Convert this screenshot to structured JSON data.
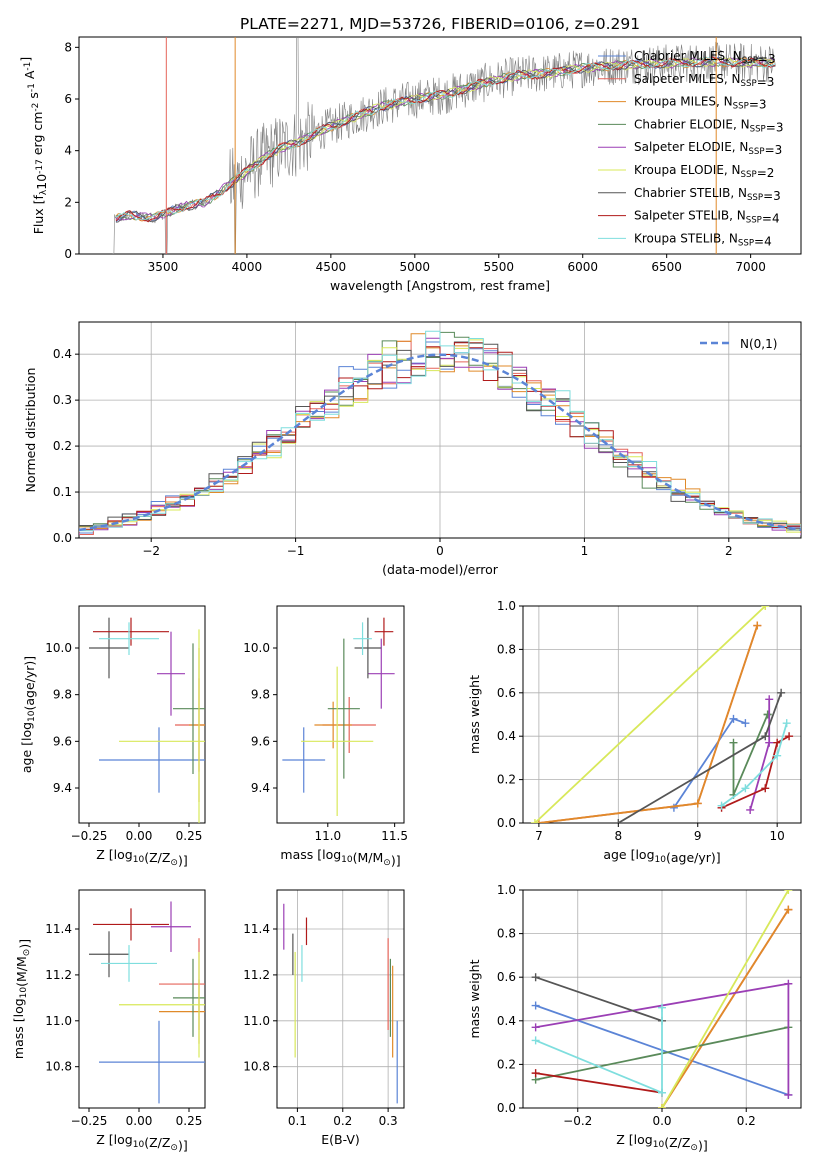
{
  "title": "PLATE=2271, MJD=53726, FIBERID=0106, z=0.291",
  "colors": {
    "chabrier_miles": "#5b84d6",
    "salpeter_miles": "#e5645a",
    "kroupa_miles": "#e08a2a",
    "chabrier_elodie": "#5a8a5a",
    "salpeter_elodie": "#9b3fb5",
    "kroupa_elodie": "#d8e85a",
    "chabrier_stelib": "#555555",
    "salpeter_stelib": "#b01a1a",
    "kroupa_stelib": "#7fdede",
    "data": "#808080",
    "gaussian": "#5b84d6"
  },
  "chart_data": [
    {
      "id": "spectrum",
      "type": "line",
      "xlabel": "wavelength [Angstrom, rest frame]",
      "ylabel": "Flux [f$_\\lambda$10$^{-17}$ erg cm$^{-2}$ s$^{-1}$ A$^{-1}$]",
      "xlim": [
        3000,
        7300
      ],
      "ylim": [
        0,
        8.4
      ],
      "xticks": [
        3500,
        4000,
        4500,
        5000,
        5500,
        6000,
        6500,
        7000
      ],
      "yticks": [
        0,
        2,
        4,
        6,
        8
      ],
      "legend_position": "top-right",
      "legend": [
        {
          "label": "Chabrier MILES, N$_{SSP}$=3",
          "color_key": "chabrier_miles"
        },
        {
          "label": "Salpeter MILES, N$_{SSP}$=3",
          "color_key": "salpeter_miles"
        },
        {
          "label": "Kroupa MILES, N$_{SSP}$=3",
          "color_key": "kroupa_miles"
        },
        {
          "label": "Chabrier ELODIE, N$_{SSP}$=3",
          "color_key": "chabrier_elodie"
        },
        {
          "label": "Salpeter ELODIE, N$_{SSP}$=3",
          "color_key": "salpeter_elodie"
        },
        {
          "label": "Kroupa ELODIE, N$_{SSP}$=2",
          "color_key": "kroupa_elodie"
        },
        {
          "label": "Chabrier STELIB, N$_{SSP}$=3",
          "color_key": "chabrier_stelib"
        },
        {
          "label": "Salpeter STELIB, N$_{SSP}$=4",
          "color_key": "salpeter_stelib"
        },
        {
          "label": "Kroupa STELIB, N$_{SSP}$=4",
          "color_key": "kroupa_stelib"
        }
      ],
      "continuum": {
        "x": [
          3200,
          3300,
          3450,
          3600,
          3750,
          3900,
          4000,
          4100,
          4200,
          4300,
          4450,
          4600,
          4800,
          5000,
          5200,
          5400,
          5600,
          5800,
          6000,
          6200,
          6400,
          6600,
          6800,
          7000,
          7100
        ],
        "y": [
          1.3,
          1.5,
          1.4,
          1.8,
          2.0,
          2.7,
          3.2,
          3.7,
          4.1,
          4.3,
          4.8,
          5.2,
          5.7,
          6.0,
          6.2,
          6.6,
          6.9,
          7.0,
          7.2,
          7.3,
          7.35,
          7.4,
          7.45,
          7.4,
          7.4
        ]
      }
    },
    {
      "id": "residual_hist",
      "type": "histogram",
      "xlabel": "(data-model)/error",
      "ylabel": "Normed distribution",
      "xlim": [
        -2.5,
        2.5
      ],
      "ylim": [
        0,
        0.47
      ],
      "xticks": [
        -2,
        -1,
        0,
        1,
        2
      ],
      "yticks": [
        0.0,
        0.1,
        0.2,
        0.3,
        0.4
      ],
      "grid": true,
      "legend_position": "top-right",
      "reference": {
        "label": "$\\mathcal{N}(0,1)$",
        "mean": 0,
        "sigma": 1
      }
    },
    {
      "id": "age_vs_Z",
      "type": "errorbar",
      "xlabel": "Z [log$_{10}$(Z/Z$_\\odot$)]",
      "ylabel": "age  [log$_{10}$(age/yr)]",
      "xlim": [
        -0.3,
        0.33
      ],
      "ylim": [
        9.25,
        10.18
      ],
      "xticks": [
        -0.25,
        0.0,
        0.25
      ],
      "yticks": [
        9.4,
        9.6,
        9.8,
        10.0
      ],
      "points": [
        {
          "series": "chabrier_miles",
          "x": 0.1,
          "y": 9.52,
          "xerr": 0.3,
          "yerr": 0.14
        },
        {
          "series": "salpeter_miles",
          "x": 0.3,
          "y": 9.67,
          "xerr": 0.12,
          "yerr": 0.2
        },
        {
          "series": "kroupa_miles",
          "x": 0.3,
          "y": 9.67,
          "xerr": 0.05,
          "yerr": 0.33
        },
        {
          "series": "chabrier_elodie",
          "x": 0.27,
          "y": 9.74,
          "xerr": 0.1,
          "yerr": 0.28
        },
        {
          "series": "salpeter_elodie",
          "x": 0.16,
          "y": 9.89,
          "xerr": 0.07,
          "yerr": 0.18
        },
        {
          "series": "kroupa_elodie",
          "x": 0.3,
          "y": 9.6,
          "xerr": 0.4,
          "yerr": 0.48
        },
        {
          "series": "chabrier_stelib",
          "x": -0.15,
          "y": 10.0,
          "xerr": 0.1,
          "yerr": 0.13
        },
        {
          "series": "salpeter_stelib",
          "x": -0.04,
          "y": 10.07,
          "xerr": 0.19,
          "yerr": 0.06
        },
        {
          "series": "kroupa_stelib",
          "x": -0.05,
          "y": 10.04,
          "xerr": 0.15,
          "yerr": 0.07
        }
      ]
    },
    {
      "id": "age_vs_mass",
      "type": "errorbar",
      "xlabel": "mass [log$_{10}$(M/M$_\\odot$)]",
      "ylabel": "",
      "xlim": [
        10.62,
        11.57
      ],
      "ylim": [
        9.25,
        10.18
      ],
      "xticks": [
        11.0,
        11.5
      ],
      "yticks": [
        9.4,
        9.6,
        9.8,
        10.0
      ],
      "points": [
        {
          "series": "chabrier_miles",
          "x": 10.82,
          "y": 9.52,
          "xerr": 0.16,
          "yerr": 0.14
        },
        {
          "series": "salpeter_miles",
          "x": 11.16,
          "y": 9.67,
          "xerr": 0.2,
          "yerr": 0.12
        },
        {
          "series": "kroupa_miles",
          "x": 11.04,
          "y": 9.67,
          "xerr": 0.14,
          "yerr": 0.1
        },
        {
          "series": "chabrier_elodie",
          "x": 11.12,
          "y": 9.74,
          "xerr": 0.12,
          "yerr": 0.3
        },
        {
          "series": "salpeter_elodie",
          "x": 11.4,
          "y": 9.89,
          "xerr": 0.1,
          "yerr": 0.15
        },
        {
          "series": "kroupa_elodie",
          "x": 11.07,
          "y": 9.6,
          "xerr": 0.27,
          "yerr": 0.32
        },
        {
          "series": "chabrier_stelib",
          "x": 11.3,
          "y": 10.0,
          "xerr": 0.1,
          "yerr": 0.13
        },
        {
          "series": "salpeter_stelib",
          "x": 11.42,
          "y": 10.07,
          "xerr": 0.07,
          "yerr": 0.06
        },
        {
          "series": "kroupa_stelib",
          "x": 11.26,
          "y": 10.04,
          "xerr": 0.07,
          "yerr": 0.07
        }
      ]
    },
    {
      "id": "mass_weight_vs_age",
      "type": "line",
      "xlabel": "age  [log$_{10}$(age/yr)]",
      "ylabel": "mass weight",
      "xlim": [
        6.8,
        10.3
      ],
      "ylim": [
        0,
        1.0
      ],
      "xticks": [
        7,
        8,
        9,
        10
      ],
      "yticks": [
        0.0,
        0.2,
        0.4,
        0.6,
        0.8,
        1.0
      ],
      "grid": true,
      "series": [
        {
          "name": "chabrier_miles",
          "x": [
            8.7,
            9.45,
            9.6
          ],
          "y": [
            0.07,
            0.48,
            0.46
          ]
        },
        {
          "name": "salpeter_miles",
          "x": [
            7.0,
            9.0,
            9.75
          ],
          "y": [
            0.0,
            0.09,
            0.91
          ]
        },
        {
          "name": "kroupa_miles",
          "x": [
            7.0,
            9.0,
            9.75
          ],
          "y": [
            0.0,
            0.09,
            0.91
          ]
        },
        {
          "name": "chabrier_elodie",
          "x": [
            9.45,
            9.45,
            9.88,
            9.88
          ],
          "y": [
            0.37,
            0.13,
            0.5,
            0.5
          ]
        },
        {
          "name": "salpeter_elodie",
          "x": [
            9.66,
            9.9,
            9.9
          ],
          "y": [
            0.06,
            0.37,
            0.57
          ]
        },
        {
          "name": "kroupa_elodie",
          "x": [
            6.95,
            9.85
          ],
          "y": [
            0.0,
            1.0
          ]
        },
        {
          "name": "chabrier_stelib",
          "x": [
            8.0,
            9.85,
            10.05
          ],
          "y": [
            0.0,
            0.4,
            0.6
          ]
        },
        {
          "name": "salpeter_stelib",
          "x": [
            9.3,
            9.85,
            10.0,
            10.15
          ],
          "y": [
            0.07,
            0.16,
            0.37,
            0.4
          ]
        },
        {
          "name": "kroupa_stelib",
          "x": [
            9.3,
            9.6,
            10.0,
            10.12
          ],
          "y": [
            0.08,
            0.16,
            0.31,
            0.46
          ]
        }
      ]
    },
    {
      "id": "mass_vs_Z",
      "type": "errorbar",
      "xlabel": "Z [log$_{10}$(Z/Z$_\\odot$)]",
      "ylabel": "mass [log$_{10}$(M/M$_\\odot$)]",
      "xlim": [
        -0.3,
        0.33
      ],
      "ylim": [
        10.62,
        11.57
      ],
      "xticks": [
        -0.25,
        0.0,
        0.25
      ],
      "yticks": [
        10.8,
        11.0,
        11.2,
        11.4
      ],
      "points": [
        {
          "series": "chabrier_miles",
          "x": 0.1,
          "y": 10.82,
          "xerr": 0.3,
          "yerr": 0.18
        },
        {
          "series": "salpeter_miles",
          "x": 0.3,
          "y": 11.16,
          "xerr": 0.2,
          "yerr": 0.2
        },
        {
          "series": "kroupa_miles",
          "x": 0.3,
          "y": 11.04,
          "xerr": 0.2,
          "yerr": 0.14
        },
        {
          "series": "chabrier_elodie",
          "x": 0.27,
          "y": 11.1,
          "xerr": 0.1,
          "yerr": 0.17
        },
        {
          "series": "salpeter_elodie",
          "x": 0.16,
          "y": 11.41,
          "xerr": 0.1,
          "yerr": 0.11
        },
        {
          "series": "kroupa_elodie",
          "x": 0.3,
          "y": 11.07,
          "xerr": 0.4,
          "yerr": 0.23
        },
        {
          "series": "chabrier_stelib",
          "x": -0.15,
          "y": 11.29,
          "xerr": 0.1,
          "yerr": 0.1
        },
        {
          "series": "salpeter_stelib",
          "x": -0.04,
          "y": 11.42,
          "xerr": 0.19,
          "yerr": 0.07
        },
        {
          "series": "kroupa_stelib",
          "x": -0.05,
          "y": 11.25,
          "xerr": 0.14,
          "yerr": 0.08
        }
      ]
    },
    {
      "id": "mass_vs_ebv",
      "type": "errorbar",
      "xlabel": "E(B-V)",
      "ylabel": "",
      "xlim": [
        0.055,
        0.335
      ],
      "ylim": [
        10.62,
        11.57
      ],
      "xticks": [
        0.1,
        0.2,
        0.3
      ],
      "yticks": [
        10.8,
        11.0,
        11.2,
        11.4
      ],
      "grid": true,
      "points": [
        {
          "series": "chabrier_miles",
          "x": 0.32,
          "y": 10.82,
          "xerr": 0,
          "yerr": 0.18
        },
        {
          "series": "salpeter_miles",
          "x": 0.3,
          "y": 11.16,
          "xerr": 0,
          "yerr": 0.2
        },
        {
          "series": "kroupa_miles",
          "x": 0.31,
          "y": 11.04,
          "xerr": 0,
          "yerr": 0.2
        },
        {
          "series": "chabrier_elodie",
          "x": 0.305,
          "y": 11.1,
          "xerr": 0,
          "yerr": 0.17
        },
        {
          "series": "salpeter_elodie",
          "x": 0.07,
          "y": 11.41,
          "xerr": 0,
          "yerr": 0.1
        },
        {
          "series": "kroupa_elodie",
          "x": 0.095,
          "y": 11.07,
          "xerr": 0,
          "yerr": 0.23
        },
        {
          "series": "chabrier_stelib",
          "x": 0.09,
          "y": 11.29,
          "xerr": 0,
          "yerr": 0.09
        },
        {
          "series": "salpeter_stelib",
          "x": 0.12,
          "y": 11.39,
          "xerr": 0,
          "yerr": 0.06
        },
        {
          "series": "kroupa_stelib",
          "x": 0.11,
          "y": 11.25,
          "xerr": 0,
          "yerr": 0.08
        }
      ]
    },
    {
      "id": "mass_weight_vs_Z",
      "type": "line",
      "xlabel": "Z [log$_{10}$(Z/Z$_\\odot$)]",
      "ylabel": "mass weight",
      "xlim": [
        -0.33,
        0.33
      ],
      "ylim": [
        0,
        1.0
      ],
      "xticks": [
        -0.2,
        0.0,
        0.2
      ],
      "yticks": [
        0.0,
        0.2,
        0.4,
        0.6,
        0.8,
        1.0
      ],
      "grid": true,
      "series": [
        {
          "name": "chabrier_miles",
          "x": [
            -0.3,
            0.3
          ],
          "y": [
            0.47,
            0.06
          ]
        },
        {
          "name": "salpeter_miles",
          "x": [
            0.0,
            0.3
          ],
          "y": [
            0.0,
            0.91
          ]
        },
        {
          "name": "kroupa_miles",
          "x": [
            0.0,
            0.3
          ],
          "y": [
            0.0,
            0.91
          ]
        },
        {
          "name": "chabrier_elodie",
          "x": [
            -0.3,
            0.3
          ],
          "y": [
            0.13,
            0.37
          ]
        },
        {
          "name": "salpeter_elodie",
          "x": [
            -0.3,
            0.3,
            0.3
          ],
          "y": [
            0.37,
            0.57,
            0.06
          ]
        },
        {
          "name": "kroupa_elodie",
          "x": [
            0.0,
            0.3
          ],
          "y": [
            0.0,
            1.0
          ]
        },
        {
          "name": "chabrier_stelib",
          "x": [
            -0.3,
            0.0
          ],
          "y": [
            0.6,
            0.4
          ]
        },
        {
          "name": "salpeter_stelib",
          "x": [
            -0.3,
            0.0
          ],
          "y": [
            0.16,
            0.07
          ]
        },
        {
          "name": "kroupa_stelib",
          "x": [
            -0.3,
            0.0,
            0.0
          ],
          "y": [
            0.31,
            0.07,
            0.46
          ]
        }
      ]
    }
  ]
}
